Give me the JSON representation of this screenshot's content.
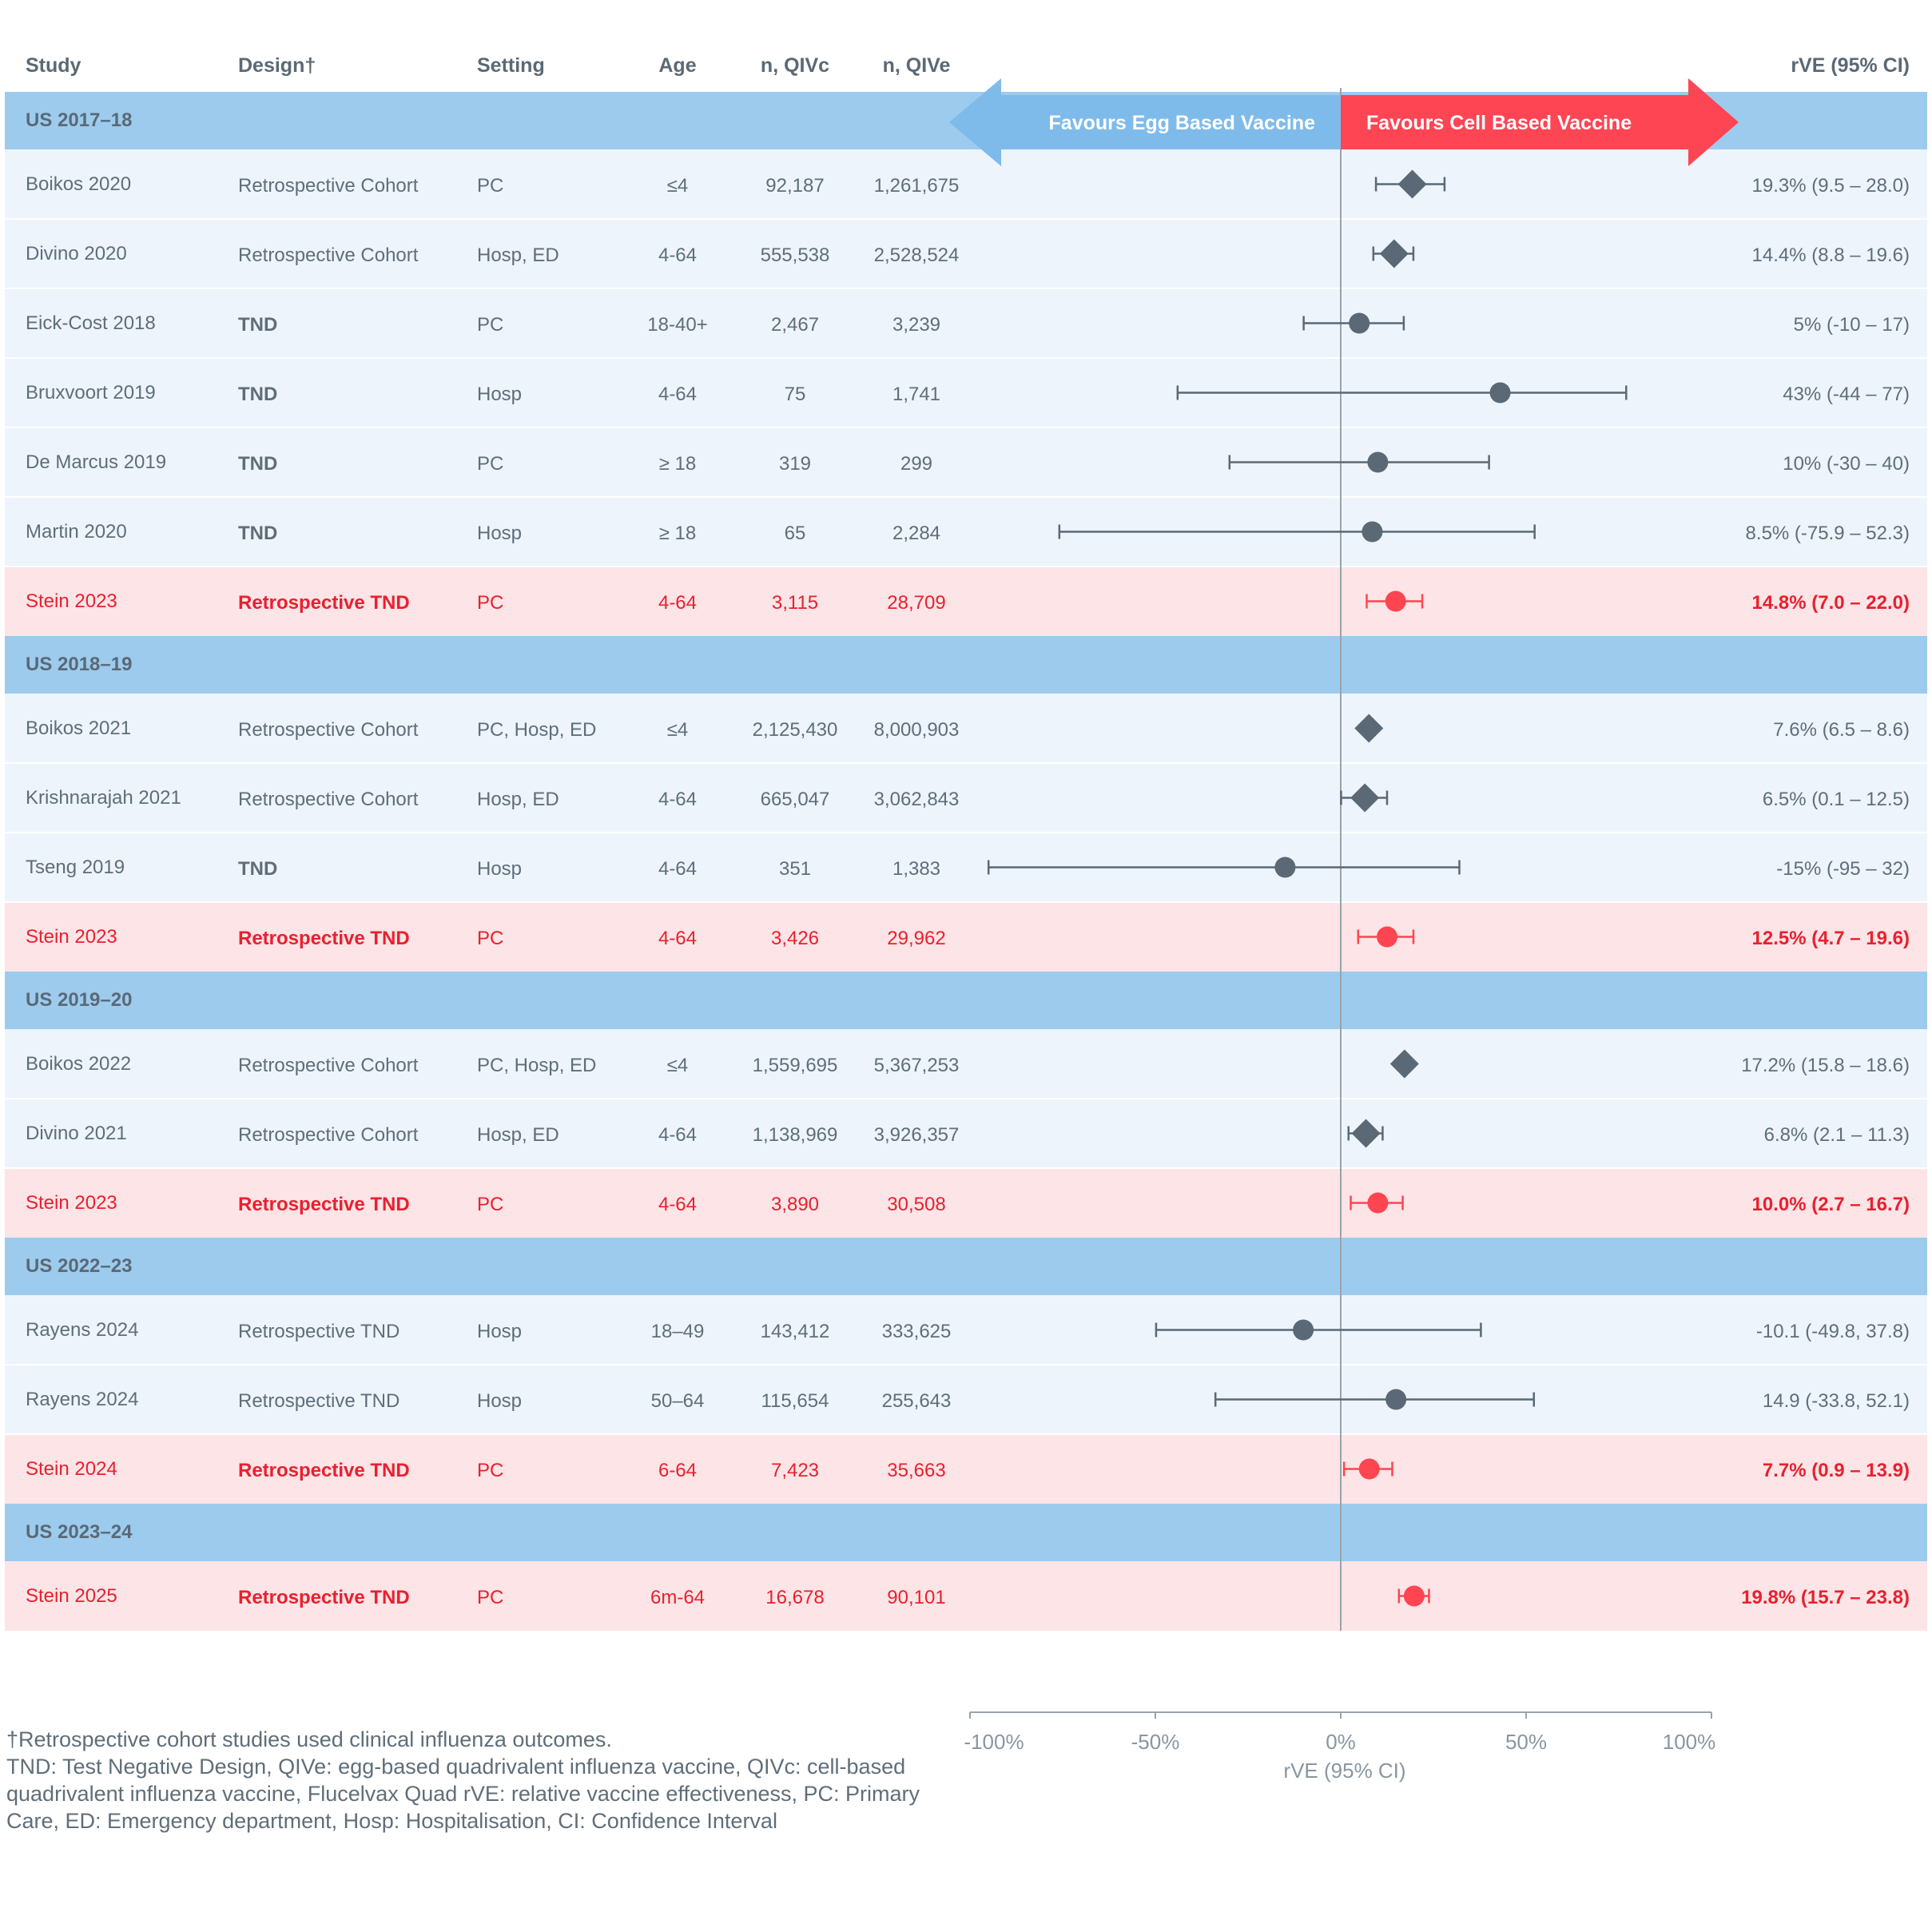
{
  "headers": {
    "study": "Study",
    "design": "Design†",
    "setting": "Setting",
    "age": "Age",
    "n_qivc": "n, QIVc",
    "n_qive": "n, QIVe",
    "rve": "rVE (95% CI)"
  },
  "favour_labels": {
    "egg": "Favours Egg Based Vaccine",
    "cell": "Favours Cell Based Vaccine"
  },
  "colors": {
    "section_band": "#9ccbee",
    "row_band": "#edf4fc",
    "highlight_band": "#fde4e6",
    "highlight_text": "#e8202f",
    "marker": "#5a6975",
    "highlight_marker": "#ff4551",
    "egg_arrow": "#7fbbea",
    "cell_arrow": "#fe4553"
  },
  "footnote": {
    "line1": "†Retrospective cohort studies used clinical influenza outcomes.",
    "line2": "TND: Test Negative Design, QIVe: egg-based quadrivalent influenza vaccine, QIVc: cell-based quadrivalent influenza vaccine, Flucelvax Quad rVE: relative vaccine effectiveness, PC: Primary Care, ED: Emergency department, Hosp: Hospitalisation, CI: Confidence Interval"
  },
  "chart_data": {
    "type": "forest",
    "xlabel": "rVE (95% CI)",
    "xlim": [
      -100,
      100
    ],
    "xticks": [
      -100,
      -50,
      0,
      50,
      100
    ],
    "xtick_labels": [
      "-100%",
      "-50%",
      "0%",
      "50%",
      "100%"
    ],
    "legend": "none",
    "sections": [
      {
        "title": "US 2017–18",
        "rows": [
          {
            "study": "Boikos 2020",
            "design": "Retrospective Cohort",
            "design_bold": false,
            "setting": "PC",
            "age": "≤4",
            "n_qivc": "92,187",
            "n_qive": "1,261,675",
            "rve_text": "19.3% (9.5 – 28.0)",
            "estimate": 19.3,
            "lower": 9.5,
            "upper": 28.0,
            "marker": "diamond",
            "highlight": false
          },
          {
            "study": "Divino 2020",
            "design": "Retrospective Cohort",
            "design_bold": false,
            "setting": "Hosp, ED",
            "age": "4-64",
            "n_qivc": "555,538",
            "n_qive": "2,528,524",
            "rve_text": "14.4% (8.8 – 19.6)",
            "estimate": 14.4,
            "lower": 8.8,
            "upper": 19.6,
            "marker": "diamond",
            "highlight": false
          },
          {
            "study": "Eick-Cost 2018",
            "design": "TND",
            "design_bold": true,
            "setting": "PC",
            "age": "18-40+",
            "n_qivc": "2,467",
            "n_qive": "3,239",
            "rve_text": "5% (-10 – 17)",
            "estimate": 5,
            "lower": -10,
            "upper": 17,
            "marker": "circle",
            "highlight": false
          },
          {
            "study": "Bruxvoort 2019",
            "design": "TND",
            "design_bold": true,
            "setting": "Hosp",
            "age": "4-64",
            "n_qivc": "75",
            "n_qive": "1,741",
            "rve_text": "43% (-44 – 77)",
            "estimate": 43,
            "lower": -44,
            "upper": 77,
            "marker": "circle",
            "highlight": false
          },
          {
            "study": "De Marcus 2019",
            "design": "TND",
            "design_bold": true,
            "setting": "PC",
            "age": "≥ 18",
            "n_qivc": "319",
            "n_qive": "299",
            "rve_text": "10% (-30 – 40)",
            "estimate": 10,
            "lower": -30,
            "upper": 40,
            "marker": "circle",
            "highlight": false
          },
          {
            "study": "Martin 2020",
            "design": "TND",
            "design_bold": true,
            "setting": "Hosp",
            "age": "≥ 18",
            "n_qivc": "65",
            "n_qive": "2,284",
            "rve_text": "8.5% (-75.9 – 52.3)",
            "estimate": 8.5,
            "lower": -75.9,
            "upper": 52.3,
            "marker": "circle",
            "highlight": false
          },
          {
            "study": "Stein 2023",
            "design": "Retrospective TND",
            "design_bold": true,
            "setting": "PC",
            "age": "4-64",
            "n_qivc": "3,115",
            "n_qive": "28,709",
            "rve_text": "14.8% (7.0 – 22.0)",
            "estimate": 14.8,
            "lower": 7.0,
            "upper": 22.0,
            "marker": "circle",
            "highlight": true
          }
        ]
      },
      {
        "title": "US 2018–19",
        "rows": [
          {
            "study": "Boikos 2021",
            "design": "Retrospective Cohort",
            "design_bold": false,
            "setting": "PC, Hosp, ED",
            "age": "≤4",
            "n_qivc": "2,125,430",
            "n_qive": "8,000,903",
            "rve_text": "7.6% (6.5 – 8.6)",
            "estimate": 7.6,
            "lower": 6.5,
            "upper": 8.6,
            "marker": "diamond",
            "highlight": false
          },
          {
            "study": "Krishnarajah 2021",
            "design": "Retrospective Cohort",
            "design_bold": false,
            "setting": "Hosp, ED",
            "age": "4-64",
            "n_qivc": "665,047",
            "n_qive": "3,062,843",
            "rve_text": "6.5% (0.1 – 12.5)",
            "estimate": 6.5,
            "lower": 0.1,
            "upper": 12.5,
            "marker": "diamond",
            "highlight": false
          },
          {
            "study": "Tseng 2019",
            "design": "TND",
            "design_bold": true,
            "setting": "Hosp",
            "age": "4-64",
            "n_qivc": "351",
            "n_qive": "1,383",
            "rve_text": "-15% (-95 – 32)",
            "estimate": -15,
            "lower": -95,
            "upper": 32,
            "marker": "circle",
            "highlight": false
          },
          {
            "study": "Stein 2023",
            "design": "Retrospective TND",
            "design_bold": true,
            "setting": "PC",
            "age": "4-64",
            "n_qivc": "3,426",
            "n_qive": "29,962",
            "rve_text": "12.5% (4.7 – 19.6)",
            "estimate": 12.5,
            "lower": 4.7,
            "upper": 19.6,
            "marker": "circle",
            "highlight": true
          }
        ]
      },
      {
        "title": "US 2019–20",
        "rows": [
          {
            "study": "Boikos 2022",
            "design": "Retrospective Cohort",
            "design_bold": false,
            "setting": "PC, Hosp, ED",
            "age": "≤4",
            "n_qivc": "1,559,695",
            "n_qive": "5,367,253",
            "rve_text": "17.2% (15.8 – 18.6)",
            "estimate": 17.2,
            "lower": 15.8,
            "upper": 18.6,
            "marker": "diamond",
            "highlight": false
          },
          {
            "study": "Divino 2021",
            "design": "Retrospective Cohort",
            "design_bold": false,
            "setting": "Hosp, ED",
            "age": "4-64",
            "n_qivc": "1,138,969",
            "n_qive": "3,926,357",
            "rve_text": "6.8% (2.1 – 11.3)",
            "estimate": 6.8,
            "lower": 2.1,
            "upper": 11.3,
            "marker": "diamond",
            "highlight": false
          },
          {
            "study": "Stein 2023",
            "design": "Retrospective TND",
            "design_bold": true,
            "setting": "PC",
            "age": "4-64",
            "n_qivc": "3,890",
            "n_qive": "30,508",
            "rve_text": "10.0% (2.7 – 16.7)",
            "estimate": 10.0,
            "lower": 2.7,
            "upper": 16.7,
            "marker": "circle",
            "highlight": true
          }
        ]
      },
      {
        "title": "US 2022–23",
        "rows": [
          {
            "study": "Rayens 2024",
            "design": "Retrospective TND",
            "design_bold": false,
            "setting": "Hosp",
            "age": "18–49",
            "n_qivc": "143,412",
            "n_qive": "333,625",
            "rve_text": "-10.1 (-49.8, 37.8)",
            "estimate": -10.1,
            "lower": -49.8,
            "upper": 37.8,
            "marker": "circle",
            "highlight": false
          },
          {
            "study": "Rayens 2024",
            "design": "Retrospective TND",
            "design_bold": false,
            "setting": "Hosp",
            "age": "50–64",
            "n_qivc": "115,654",
            "n_qive": "255,643",
            "rve_text": "14.9 (-33.8, 52.1)",
            "estimate": 14.9,
            "lower": -33.8,
            "upper": 52.1,
            "marker": "circle",
            "highlight": false
          },
          {
            "study": "Stein 2024",
            "design": "Retrospective TND",
            "design_bold": true,
            "setting": "PC",
            "age": "6-64",
            "n_qivc": "7,423",
            "n_qive": "35,663",
            "rve_text": "7.7% (0.9 – 13.9)",
            "estimate": 7.7,
            "lower": 0.9,
            "upper": 13.9,
            "marker": "circle",
            "highlight": true
          }
        ]
      },
      {
        "title": "US 2023–24",
        "rows": [
          {
            "study": "Stein 2025",
            "design": "Retrospective TND",
            "design_bold": true,
            "setting": "PC",
            "age": "6m-64",
            "n_qivc": "16,678",
            "n_qive": "90,101",
            "rve_text": "19.8% (15.7 – 23.8)",
            "estimate": 19.8,
            "lower": 15.7,
            "upper": 23.8,
            "marker": "circle",
            "highlight": true
          }
        ]
      }
    ]
  }
}
